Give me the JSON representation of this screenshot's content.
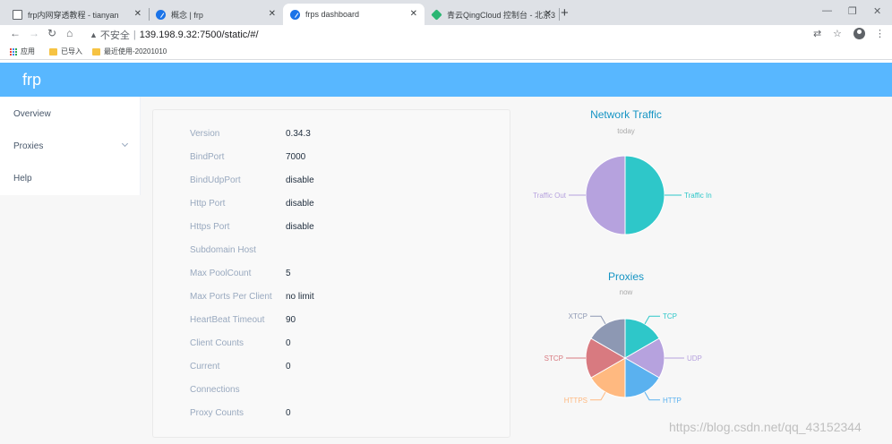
{
  "browser": {
    "tabs": [
      {
        "title": "frp内网穿透教程 - tianyan",
        "favicon": "file-icon"
      },
      {
        "title": "概念 | frp",
        "favicon": "frp-logo-icon"
      },
      {
        "title": "frps dashboard",
        "favicon": "frp-logo-icon",
        "active": true
      },
      {
        "title": "青云QingCloud 控制台 - 北京3",
        "favicon": "qingcloud-icon"
      }
    ],
    "url": "139.198.9.32:7500/static/#/",
    "security_label": "不安全",
    "bookmarks": [
      {
        "label": "应用",
        "icon": "apps-icon"
      },
      {
        "label": "已导入",
        "icon": "folder-icon"
      },
      {
        "label": "最近使用-20201010",
        "icon": "folder-icon"
      }
    ]
  },
  "app": {
    "brand": "frp",
    "menu": [
      {
        "label": "Overview"
      },
      {
        "label": "Proxies"
      },
      {
        "label": "Help"
      }
    ],
    "server_info": [
      {
        "key": "Version",
        "value": "0.34.3"
      },
      {
        "key": "BindPort",
        "value": "7000"
      },
      {
        "key": "BindUdpPort",
        "value": "disable"
      },
      {
        "key": "Http Port",
        "value": "disable"
      },
      {
        "key": "Https Port",
        "value": "disable"
      },
      {
        "key": "Subdomain Host",
        "value": ""
      },
      {
        "key": "Max PoolCount",
        "value": "5"
      },
      {
        "key": "Max Ports Per Client",
        "value": "no limit"
      },
      {
        "key": "HeartBeat Timeout",
        "value": "90"
      },
      {
        "key": "Client Counts",
        "value": "0"
      },
      {
        "key": "Current",
        "value": "0"
      },
      {
        "key": "Connections",
        "value": ""
      },
      {
        "key": "Proxy Counts",
        "value": "0"
      }
    ]
  },
  "chart_data": [
    {
      "type": "pie",
      "title": "Network Traffic",
      "subtitle": "today",
      "categories": [
        "Traffic In",
        "Traffic Out"
      ],
      "values": [
        50,
        50
      ],
      "colors": [
        "#2ec7c9",
        "#b6a2de"
      ]
    },
    {
      "type": "pie",
      "title": "Proxies",
      "subtitle": "now",
      "categories": [
        "TCP",
        "UDP",
        "HTTP",
        "HTTPS",
        "STCP",
        "XTCP"
      ],
      "values": [
        1,
        1,
        1,
        1,
        1,
        1
      ],
      "colors": [
        "#2ec7c9",
        "#b6a2de",
        "#5ab1ef",
        "#ffb980",
        "#d87a80",
        "#8d98b3"
      ]
    }
  ],
  "watermark": "https://blog.csdn.net/qq_43152344"
}
